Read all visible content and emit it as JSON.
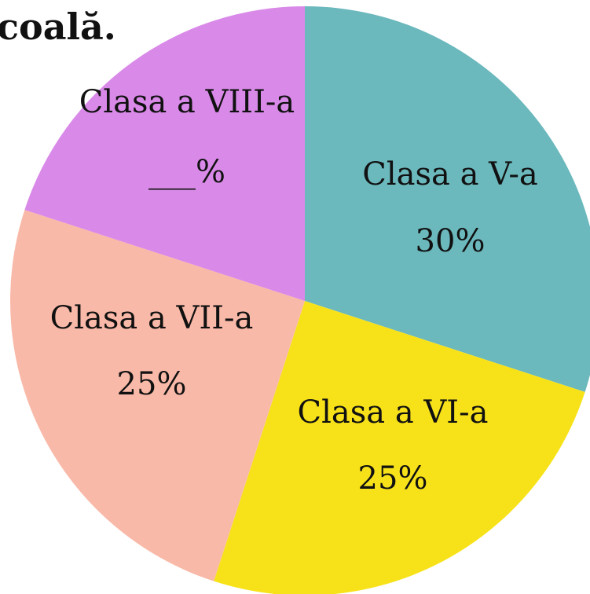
{
  "chart_data": {
    "type": "pie",
    "title": "coală.",
    "categories": [
      "Clasa a V-a",
      "Clasa a VI-a",
      "Clasa a VII-a",
      "Clasa a VIII-a"
    ],
    "values": [
      30,
      25,
      25,
      20
    ],
    "value_labels": [
      "30%",
      "25%",
      "25%",
      "___%"
    ],
    "colors": [
      "#6bb8bd",
      "#f7e21a",
      "#f9b9a8",
      "#d98ae8"
    ]
  }
}
